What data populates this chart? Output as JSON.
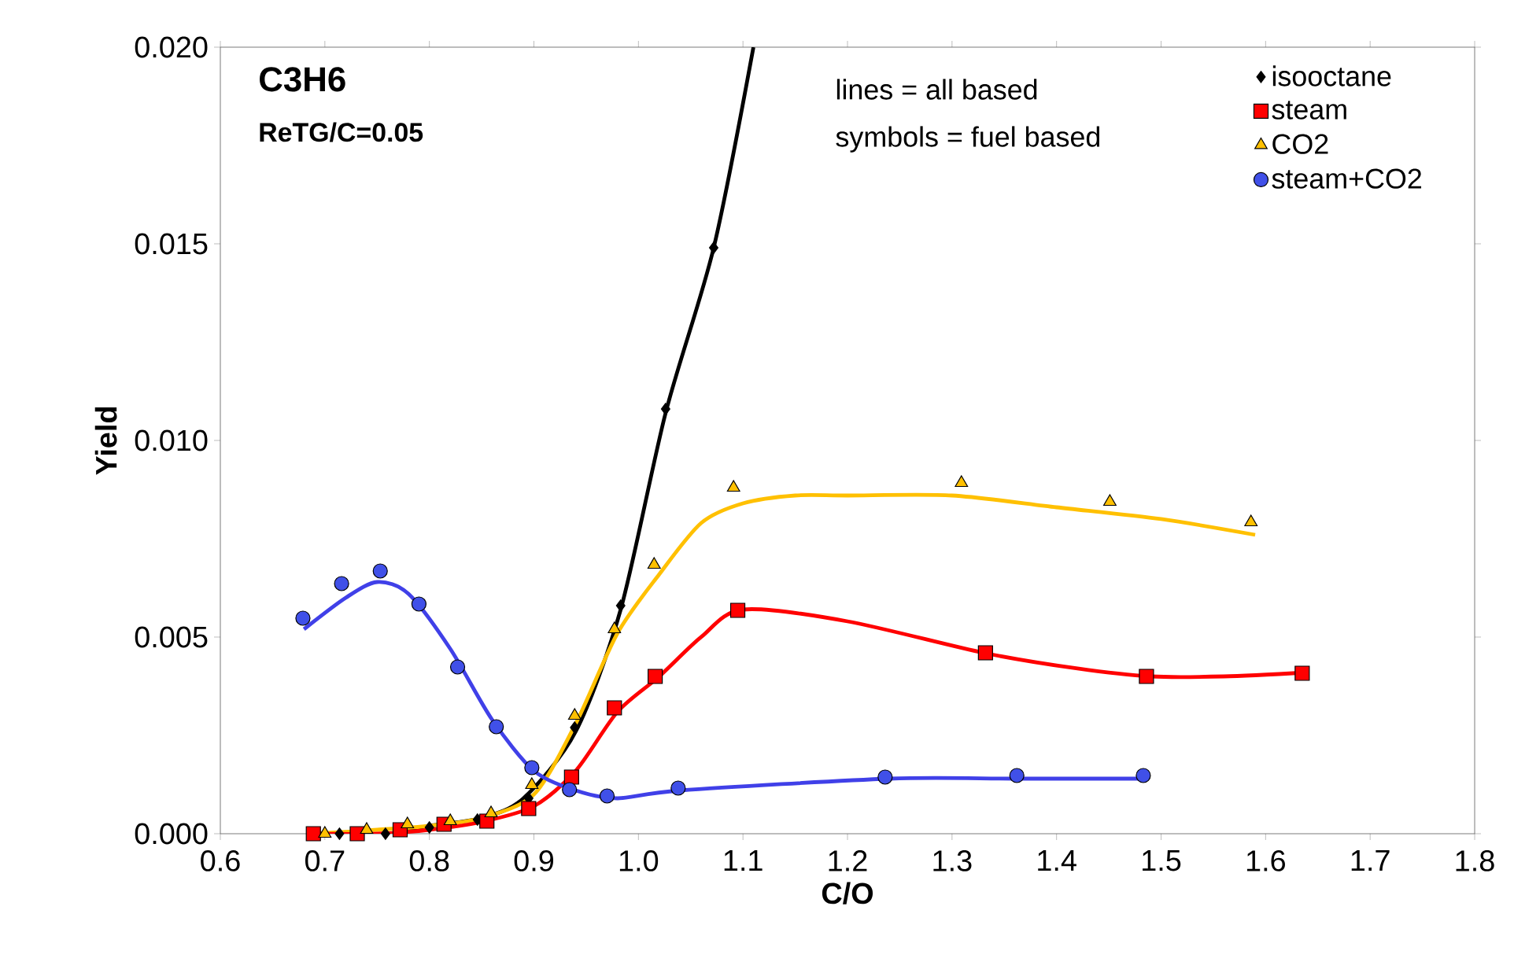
{
  "chart_data": {
    "type": "scatter",
    "xlabel": "C/O",
    "ylabel": "Yield",
    "annotations": [
      "**C3H6**",
      "**ReTG/C=0.05**",
      "lines = all based",
      "symbols = fuel based"
    ],
    "xlim": [
      0.6,
      1.8
    ],
    "ylim": [
      0,
      0.02
    ],
    "xticks": [
      0.6,
      0.7,
      0.8,
      0.9,
      {
        "value": 1,
        "label": "1.0"
      },
      1.1,
      1.2,
      1.3,
      1.4,
      1.5,
      1.6,
      1.7,
      1.8
    ],
    "yticks": [
      {
        "value": 0,
        "label": "0.000"
      },
      0.005,
      {
        "value": 0.01,
        "label": "0.010"
      },
      0.015,
      {
        "value": 0.02,
        "label": "0.020"
      }
    ],
    "grid": false,
    "legend": "top right",
    "series": [
      {
        "type": "line",
        "color": "#000000",
        "line_style": "solid",
        "x": [
          0.7,
          0.76,
          0.8,
          0.85,
          0.89,
          0.94,
          0.983,
          1.026,
          1.072,
          1.11
        ],
        "values": [
          0.0,
          0.0,
          0.0002,
          0.0004,
          0.0009,
          0.0026,
          0.0057,
          0.0107,
          0.0149,
          0.02
        ]
      },
      {
        "type": "line",
        "color": "#ffc000",
        "line_style": "solid",
        "x": [
          0.69,
          0.75,
          0.8,
          0.85,
          0.9,
          0.94,
          0.98,
          1.02,
          1.06,
          1.1,
          1.15,
          1.2,
          1.3,
          1.4,
          1.5,
          1.59
        ],
        "values": [
          0.0,
          0.0001,
          0.0002,
          0.0004,
          0.001,
          0.0028,
          0.0051,
          0.0066,
          0.0079,
          0.0084,
          0.0086,
          0.0086,
          0.0086,
          0.0083,
          0.008,
          0.0076
        ]
      },
      {
        "type": "line",
        "color": "#ff0000",
        "line_style": "solid",
        "x": [
          0.69,
          0.75,
          0.8,
          0.85,
          0.9,
          0.94,
          0.98,
          1.02,
          1.06,
          1.1,
          1.2,
          1.33,
          1.42,
          1.49,
          1.56,
          1.64
        ],
        "values": [
          0.0,
          0.0,
          0.0001,
          0.0003,
          0.0007,
          0.0016,
          0.0031,
          0.004,
          0.005,
          0.0057,
          0.0054,
          0.0046,
          0.0042,
          0.004,
          0.004,
          0.0041
        ]
      },
      {
        "type": "line",
        "color": "#4040e8",
        "line_style": "solid",
        "x": [
          0.68,
          0.72,
          0.75,
          0.78,
          0.82,
          0.86,
          0.9,
          0.94,
          0.98,
          1.04,
          1.24,
          1.36,
          1.48
        ],
        "values": [
          0.0052,
          0.006,
          0.0064,
          0.0061,
          0.0047,
          0.0029,
          0.0016,
          0.0011,
          0.0009,
          0.0011,
          0.0014,
          0.0014,
          0.0014
        ]
      },
      {
        "name": "isooctane",
        "color": "#000000",
        "marker": "diamond",
        "x": [
          0.714,
          0.758,
          0.8,
          0.846,
          0.895,
          0.939,
          0.983,
          1.026,
          1.072
        ],
        "values": [
          0.0,
          0.0,
          0.00016,
          0.00036,
          0.0009,
          0.0027,
          0.0058,
          0.0108,
          0.0149
        ]
      },
      {
        "name": "steam",
        "color": "#ff0000",
        "marker": "square",
        "x": [
          0.689,
          0.731,
          0.772,
          0.814,
          0.855,
          0.895,
          0.936,
          0.977,
          1.016,
          1.095,
          1.332,
          1.486,
          1.635
        ],
        "values": [
          0.0,
          0.0,
          0.0001,
          0.00024,
          0.00032,
          0.00064,
          0.00144,
          0.0032,
          0.004,
          0.00568,
          0.0046,
          0.004,
          0.00408
        ]
      },
      {
        "name": "CO2",
        "color": "#ffc000",
        "marker": "triangle",
        "x": [
          0.7,
          0.74,
          0.779,
          0.82,
          0.859,
          0.898,
          0.939,
          0.977,
          1.015,
          1.091,
          1.309,
          1.451,
          1.586
        ],
        "values": [
          0.0,
          0.0001,
          0.00024,
          0.00032,
          0.00052,
          0.00124,
          0.003,
          0.0052,
          0.00684,
          0.0088,
          0.00892,
          0.00844,
          0.00792
        ]
      },
      {
        "name": "steam+CO2",
        "color": "#4050e8",
        "marker": "circle",
        "x": [
          0.679,
          0.716,
          0.753,
          0.79,
          0.827,
          0.864,
          0.898,
          0.934,
          0.97,
          1.038,
          1.236,
          1.362,
          1.483
        ],
        "values": [
          0.00548,
          0.00636,
          0.00668,
          0.00584,
          0.00424,
          0.00272,
          0.00168,
          0.00112,
          0.00096,
          0.00116,
          0.00144,
          0.00148,
          0.00148
        ]
      }
    ]
  }
}
